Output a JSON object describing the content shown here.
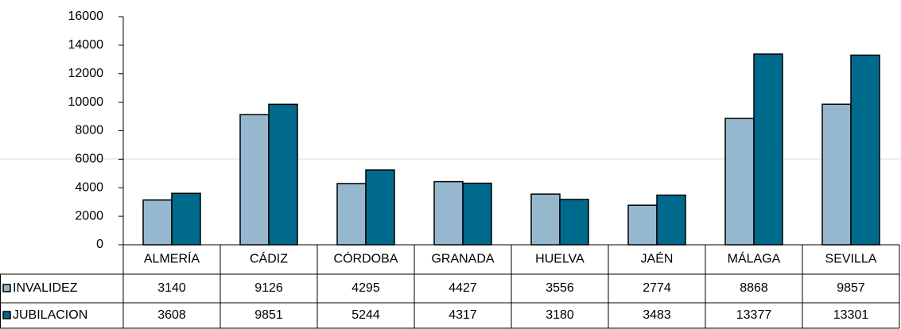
{
  "chart_data": {
    "type": "bar",
    "categories": [
      "ALMERÍA",
      "CÁDIZ",
      "CÓRDOBA",
      "GRANADA",
      "HUELVA",
      "JAÉN",
      "MÁLAGA",
      "SEVILLA"
    ],
    "series": [
      {
        "name": "INVALIDEZ",
        "color": "#95b8cf",
        "values": [
          3140,
          9126,
          4295,
          4427,
          3556,
          2774,
          8868,
          9857
        ]
      },
      {
        "name": "JUBILACION",
        "color": "#006a8c",
        "values": [
          3608,
          9851,
          5244,
          4317,
          3180,
          3483,
          13377,
          13301
        ]
      }
    ],
    "ylim": [
      0,
      16000
    ],
    "yticks": [
      0,
      2000,
      4000,
      6000,
      8000,
      10000,
      12000,
      14000,
      16000
    ]
  }
}
